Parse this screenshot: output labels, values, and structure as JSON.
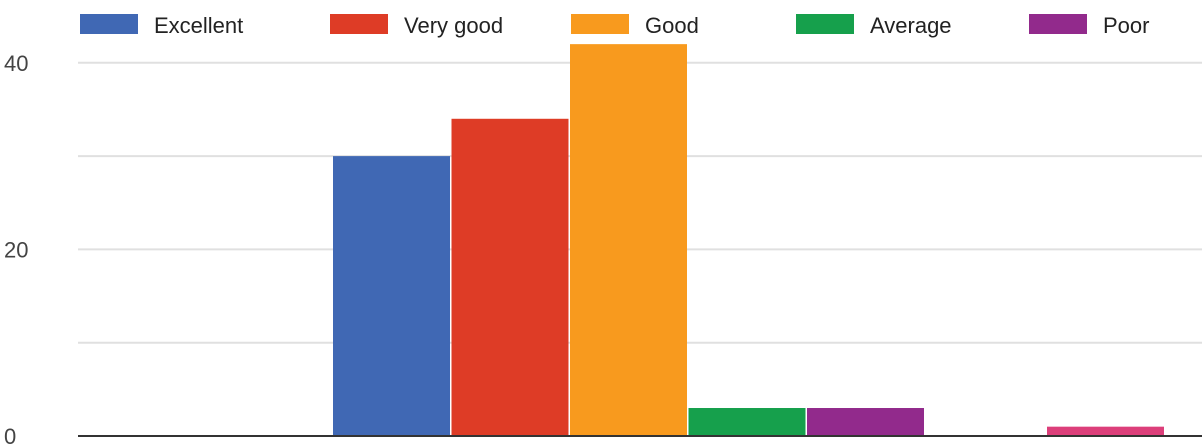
{
  "chart_data": {
    "type": "bar",
    "title": "",
    "xlabel": "",
    "ylabel": "",
    "ylim": [
      0,
      44
    ],
    "yticks": [
      0,
      20,
      40
    ],
    "grid": true,
    "legend_position": "top",
    "series": [
      {
        "name": "Excellent",
        "color": "#4068b4",
        "value": 30
      },
      {
        "name": "Very good",
        "color": "#de3c26",
        "value": 34
      },
      {
        "name": "Good",
        "color": "#f89a1e",
        "value": 42
      },
      {
        "name": "Average",
        "color": "#16a04c",
        "value": 3
      },
      {
        "name": "Poor",
        "color": "#922a8c",
        "value": 3
      },
      {
        "name": "",
        "color": "#dc3f7a",
        "value": 1
      }
    ]
  }
}
